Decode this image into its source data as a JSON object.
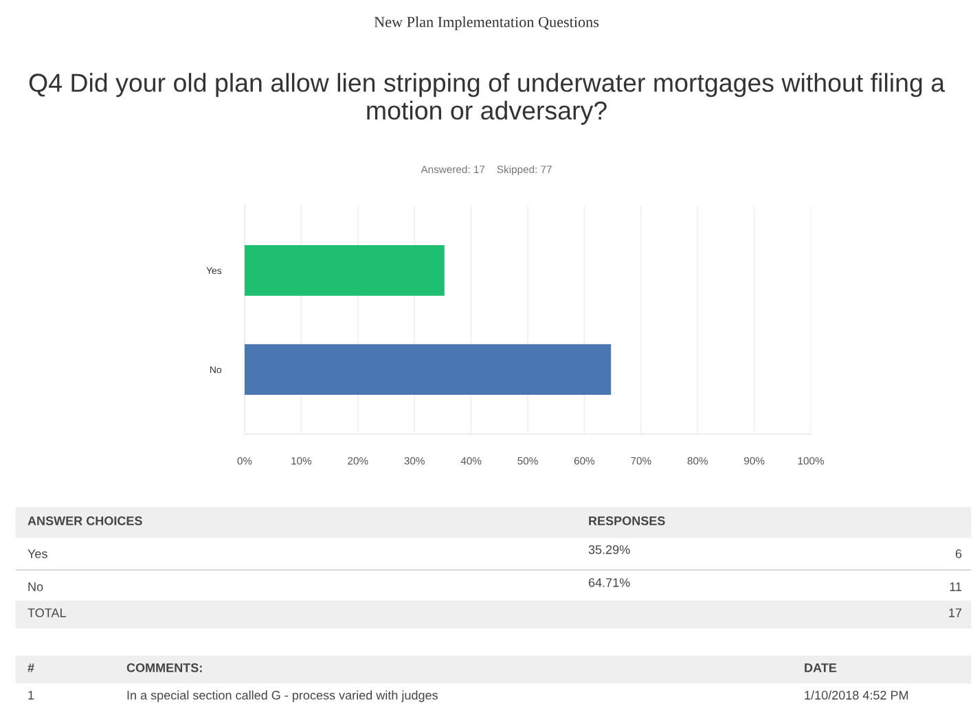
{
  "chart_data": {
    "type": "bar",
    "orientation": "horizontal",
    "subtitle": "New Plan Implementation Questions",
    "title": "Q4 Did your old plan allow lien stripping of underwater mortgages without filing a motion or adversary?",
    "categories": [
      "Yes",
      "No"
    ],
    "values": [
      35.29,
      64.71
    ],
    "colors": [
      "#1fbf72",
      "#4a76b2"
    ],
    "xlim": [
      0,
      100
    ],
    "xticks": [
      {
        "value": 0,
        "label": "0%"
      },
      {
        "value": 10,
        "label": "10%"
      },
      {
        "value": 20,
        "label": "20%"
      },
      {
        "value": 30,
        "label": "30%"
      },
      {
        "value": 40,
        "label": "40%"
      },
      {
        "value": 50,
        "label": "50%"
      },
      {
        "value": 60,
        "label": "60%"
      },
      {
        "value": 70,
        "label": "70%"
      },
      {
        "value": 80,
        "label": "80%"
      },
      {
        "value": 90,
        "label": "90%"
      },
      {
        "value": 100,
        "label": "100%"
      }
    ],
    "grid": "x",
    "annotations": [
      "Answered: 17    Skipped: 77",
      "ANSWER CHOICES",
      "RESPONSES",
      "35.29%",
      "6",
      "64.71%",
      "11",
      "TOTAL",
      "17",
      "#",
      "COMMENTS:",
      "DATE",
      "1",
      "In a special section called G - process varied with judges",
      "1/10/2018 4:52 PM"
    ]
  }
}
